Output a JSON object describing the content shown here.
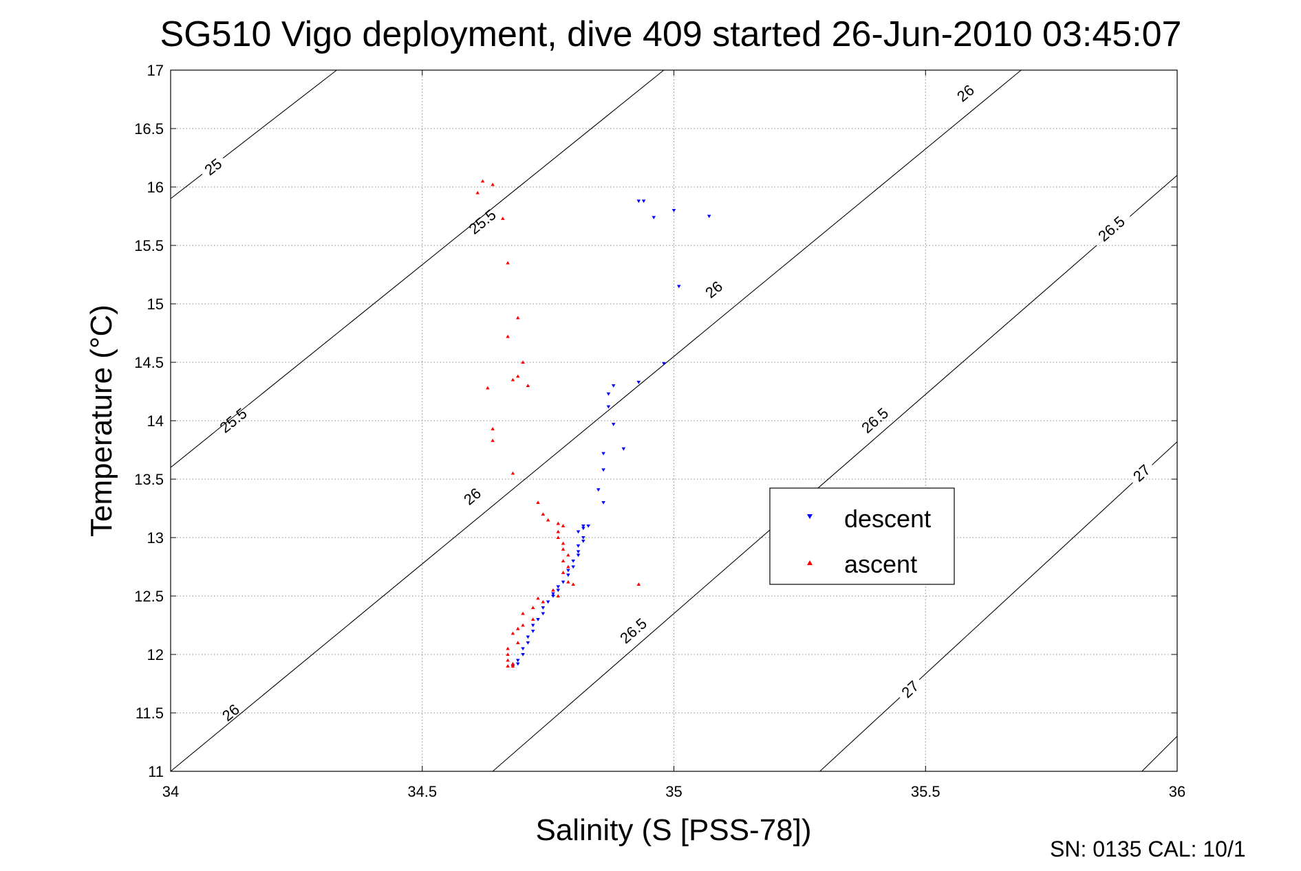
{
  "chart_data": {
    "type": "scatter",
    "title": "SG510 Vigo deployment, dive 409 started 26-Jun-2010 03:45:07",
    "xlabel": "Salinity (S [PSS-78])",
    "ylabel": "Temperature (°C)",
    "xlim": [
      34,
      36
    ],
    "ylim": [
      11,
      17
    ],
    "xticks": [
      "34",
      "34.5",
      "35",
      "35.5",
      "36"
    ],
    "yticks": [
      "11",
      "11.5",
      "12",
      "12.5",
      "13",
      "13.5",
      "14",
      "14.5",
      "15",
      "15.5",
      "16",
      "16.5",
      "17"
    ],
    "grid": true,
    "legend_position": "right-middle",
    "footer_text": "SN: 0135  CAL: 10/1",
    "contours": [
      {
        "label": "25",
        "points": [
          [
            34.0,
            15.9
          ],
          [
            34.33,
            17.0
          ]
        ],
        "label_at": [
          [
            34.085,
            16.17
          ]
        ]
      },
      {
        "label": "25.5",
        "points": [
          [
            34.0,
            13.6
          ],
          [
            34.98,
            17.0
          ]
        ],
        "label_at": [
          [
            34.125,
            14.0
          ],
          [
            34.62,
            15.7
          ]
        ]
      },
      {
        "label": "26",
        "points": [
          [
            34.0,
            11.0
          ],
          [
            35.69,
            17.0
          ]
        ],
        "label_at": [
          [
            34.12,
            11.5
          ],
          [
            34.6,
            13.35
          ],
          [
            35.08,
            15.12
          ],
          [
            35.58,
            16.8
          ]
        ]
      },
      {
        "label": "26.5",
        "points": [
          [
            34.64,
            11.0
          ],
          [
            36.0,
            16.1
          ]
        ],
        "label_at": [
          [
            34.92,
            12.2
          ],
          [
            35.4,
            14.0
          ],
          [
            35.87,
            15.64
          ]
        ]
      },
      {
        "label": "27",
        "points": [
          [
            35.29,
            11.0
          ],
          [
            36.0,
            13.82
          ]
        ],
        "label_at": [
          [
            35.47,
            11.7
          ],
          [
            35.93,
            13.55
          ]
        ]
      },
      {
        "label": "",
        "points": [
          [
            35.93,
            11.0
          ],
          [
            36.0,
            11.3
          ]
        ],
        "label_at": []
      }
    ],
    "series": [
      {
        "name": "descent",
        "color": "#0000ff",
        "marker": "triangle-down",
        "points": [
          [
            34.93,
            15.88
          ],
          [
            34.94,
            15.88
          ],
          [
            35.0,
            15.8
          ],
          [
            34.96,
            15.74
          ],
          [
            35.07,
            15.75
          ],
          [
            35.01,
            15.15
          ],
          [
            34.98,
            14.49
          ],
          [
            34.93,
            14.33
          ],
          [
            34.88,
            14.3
          ],
          [
            34.87,
            14.23
          ],
          [
            34.87,
            14.12
          ],
          [
            34.88,
            13.97
          ],
          [
            34.9,
            13.76
          ],
          [
            34.86,
            13.72
          ],
          [
            34.86,
            13.58
          ],
          [
            34.85,
            13.41
          ],
          [
            34.86,
            13.3
          ],
          [
            34.83,
            13.1
          ],
          [
            34.82,
            13.1
          ],
          [
            34.82,
            13.08
          ],
          [
            34.81,
            13.05
          ],
          [
            34.82,
            13.0
          ],
          [
            34.82,
            12.97
          ],
          [
            34.81,
            12.93
          ],
          [
            34.81,
            12.88
          ],
          [
            34.81,
            12.85
          ],
          [
            34.8,
            12.8
          ],
          [
            34.8,
            12.75
          ],
          [
            34.79,
            12.72
          ],
          [
            34.79,
            12.68
          ],
          [
            34.78,
            12.62
          ],
          [
            34.77,
            12.58
          ],
          [
            34.77,
            12.55
          ],
          [
            34.76,
            12.52
          ],
          [
            34.76,
            12.5
          ],
          [
            34.75,
            12.45
          ],
          [
            34.74,
            12.4
          ],
          [
            34.74,
            12.35
          ],
          [
            34.73,
            12.3
          ],
          [
            34.72,
            12.25
          ],
          [
            34.72,
            12.2
          ],
          [
            34.71,
            12.15
          ],
          [
            34.71,
            12.1
          ],
          [
            34.7,
            12.05
          ],
          [
            34.7,
            12.0
          ],
          [
            34.69,
            11.95
          ],
          [
            34.69,
            11.92
          ],
          [
            34.68,
            11.9
          ],
          [
            34.68,
            11.9
          ]
        ]
      },
      {
        "name": "ascent",
        "color": "#ff0000",
        "marker": "triangle-up",
        "points": [
          [
            34.62,
            16.05
          ],
          [
            34.64,
            16.02
          ],
          [
            34.61,
            15.95
          ],
          [
            34.66,
            15.73
          ],
          [
            34.67,
            15.35
          ],
          [
            34.69,
            14.88
          ],
          [
            34.67,
            14.72
          ],
          [
            34.7,
            14.5
          ],
          [
            34.69,
            14.38
          ],
          [
            34.68,
            14.35
          ],
          [
            34.71,
            14.3
          ],
          [
            34.63,
            14.28
          ],
          [
            34.64,
            13.93
          ],
          [
            34.64,
            13.83
          ],
          [
            34.68,
            13.55
          ],
          [
            34.73,
            13.3
          ],
          [
            34.74,
            13.2
          ],
          [
            34.75,
            13.15
          ],
          [
            34.77,
            13.12
          ],
          [
            34.78,
            13.1
          ],
          [
            34.77,
            13.05
          ],
          [
            34.77,
            13.0
          ],
          [
            34.78,
            12.95
          ],
          [
            34.78,
            12.9
          ],
          [
            34.79,
            12.85
          ],
          [
            34.78,
            12.8
          ],
          [
            34.79,
            12.75
          ],
          [
            34.78,
            12.7
          ],
          [
            34.79,
            12.62
          ],
          [
            34.8,
            12.6
          ],
          [
            34.76,
            12.55
          ],
          [
            34.77,
            12.5
          ],
          [
            34.73,
            12.48
          ],
          [
            34.74,
            12.45
          ],
          [
            34.72,
            12.4
          ],
          [
            34.7,
            12.35
          ],
          [
            34.72,
            12.3
          ],
          [
            34.7,
            12.25
          ],
          [
            34.69,
            12.22
          ],
          [
            34.68,
            12.18
          ],
          [
            34.69,
            12.1
          ],
          [
            34.67,
            12.05
          ],
          [
            34.67,
            12.0
          ],
          [
            34.67,
            11.95
          ],
          [
            34.68,
            11.92
          ],
          [
            34.67,
            11.9
          ],
          [
            34.67,
            11.9
          ],
          [
            34.68,
            11.9
          ],
          [
            34.93,
            12.6
          ]
        ]
      }
    ]
  }
}
